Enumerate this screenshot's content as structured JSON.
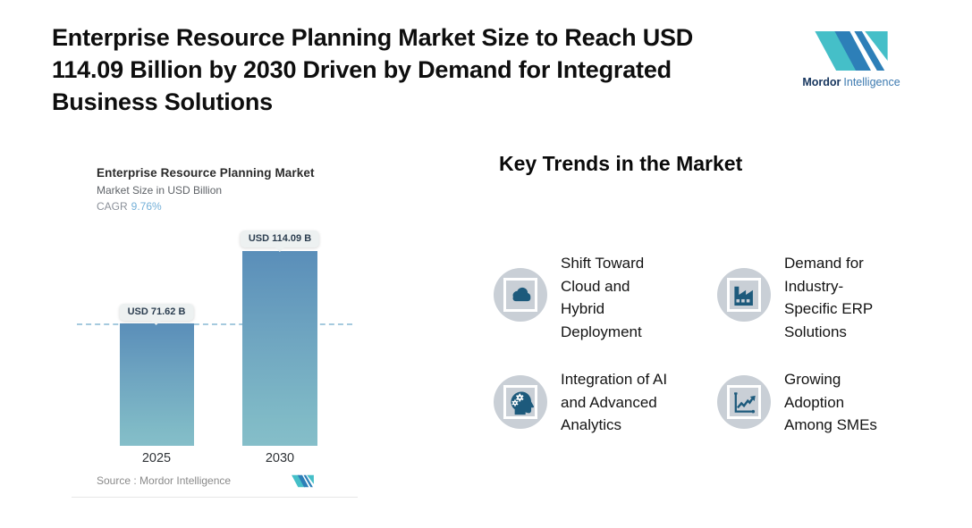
{
  "header": {
    "title_lines": [
      "Enterprise Resource Planning Market Size to Reach USD",
      "114.09 Billion by 2030 Driven by Demand for Integrated",
      "Business Solutions"
    ],
    "logo": {
      "brand_bold": "Mordor",
      "brand_regular": "Intelligence",
      "teal": "#45BFC8",
      "blue": "#2D7FB8"
    }
  },
  "chart": {
    "title": "Enterprise Resource Planning Market",
    "subtitle": "Market Size in USD Billion",
    "cagr_label": "CAGR",
    "cagr_value": "9.76%",
    "source_label": "Source :  Mordor Intelligence"
  },
  "chart_data": {
    "type": "bar",
    "title": "Enterprise Resource Planning Market",
    "subtitle": "Market Size in USD Billion",
    "cagr": "9.76%",
    "categories": [
      "2025",
      "2030"
    ],
    "values": [
      71.62,
      114.09
    ],
    "value_labels": [
      "USD 71.62 B",
      "USD 114.09 B"
    ],
    "unit": "USD Billion",
    "reference_line_value": 71.62,
    "ylim": [
      0,
      120
    ],
    "bar_gradient_top": "#5A8EB9",
    "bar_gradient_bottom": "#85BEC9",
    "reference_line_color": "#A5CADE",
    "legend": "none",
    "grid": "off"
  },
  "trends": {
    "heading": "Key Trends in the Market",
    "icon_colors": {
      "circle": "#C9CFD6",
      "glyph": "#1D5A7C",
      "frame": "#FFFFFF"
    },
    "items": [
      {
        "icon": "cloud-icon",
        "lines": [
          "Shift Toward",
          "Cloud and",
          "Hybrid",
          "Deployment"
        ]
      },
      {
        "icon": "factory-icon",
        "lines": [
          "Demand for",
          "Industry-",
          "Specific ERP",
          "Solutions"
        ]
      },
      {
        "icon": "head-gears-icon",
        "lines": [
          "Integration of AI",
          "and Advanced",
          "Analytics"
        ]
      },
      {
        "icon": "growth-chart-icon",
        "lines": [
          "Growing",
          "Adoption",
          "Among SMEs"
        ]
      }
    ]
  }
}
